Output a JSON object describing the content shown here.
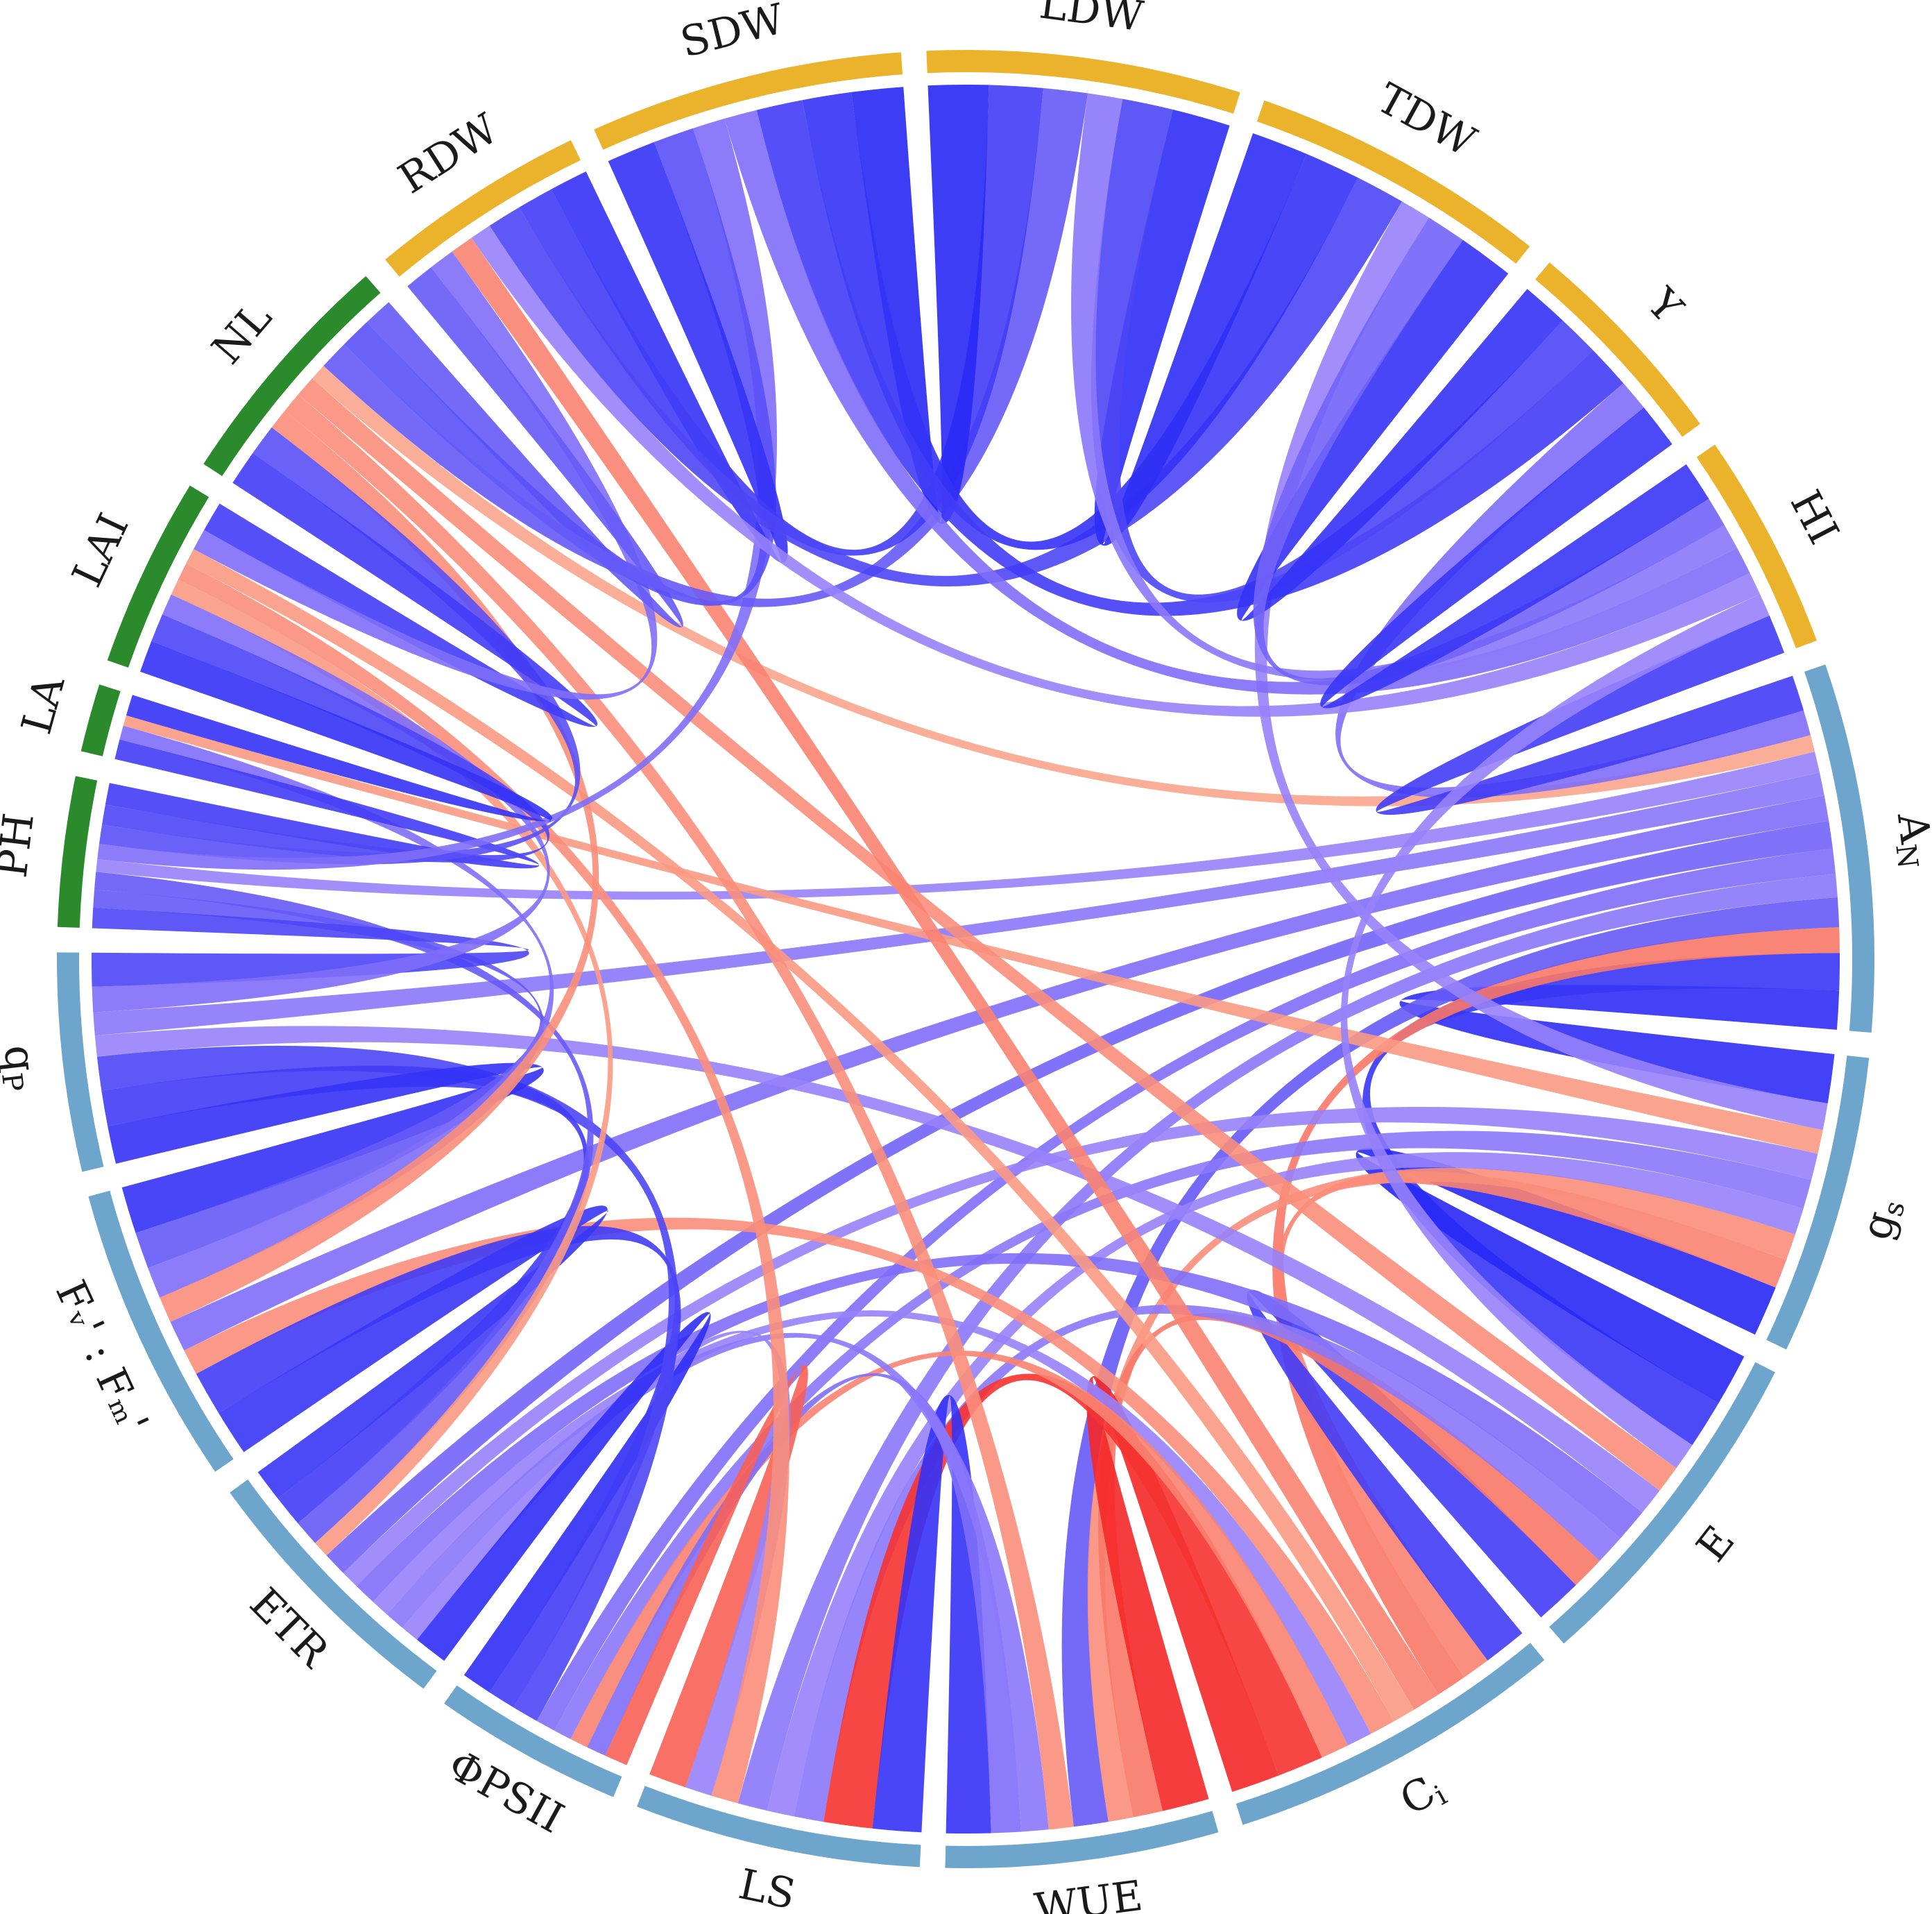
{
  "chart_data": {
    "type": "chord",
    "groups": [
      {
        "name": "AN",
        "label": "A",
        "sub": "N",
        "color": "#6ea5cc"
      },
      {
        "name": "gs",
        "label": "g",
        "sub": "s",
        "color": "#6ea5cc"
      },
      {
        "name": "E",
        "label": "E",
        "sub": "",
        "color": "#6ea5cc"
      },
      {
        "name": "Ci",
        "label": "C",
        "sub": "i",
        "color": "#6ea5cc"
      },
      {
        "name": "WUE",
        "label": "WUE",
        "sub": "",
        "color": "#6ea5cc"
      },
      {
        "name": "LS",
        "label": "LS",
        "sub": "",
        "color": "#6ea5cc"
      },
      {
        "name": "PhiPSII",
        "label": "ΦPSII",
        "sub": "",
        "color": "#6ea5cc"
      },
      {
        "name": "ETR",
        "label": "ETR",
        "sub": "",
        "color": "#6ea5cc"
      },
      {
        "name": "FvFm",
        "label": "Fᵥ' : Fₘ'",
        "sub": "",
        "color": "#6ea5cc"
      },
      {
        "name": "qP",
        "label": "q",
        "sub": "P",
        "color": "#6ea5cc"
      },
      {
        "name": "PH",
        "label": "PH",
        "sub": "",
        "color": "#2b8a2b"
      },
      {
        "name": "LA",
        "label": "LA",
        "sub": "",
        "color": "#2b8a2b"
      },
      {
        "name": "LAI",
        "label": "LAI",
        "sub": "",
        "color": "#2b8a2b"
      },
      {
        "name": "NL",
        "label": "NL",
        "sub": "",
        "color": "#2b8a2b"
      },
      {
        "name": "RDW",
        "label": "RDW",
        "sub": "",
        "color": "#ebb22b"
      },
      {
        "name": "SDW",
        "label": "SDW",
        "sub": "",
        "color": "#ebb22b"
      },
      {
        "name": "LDW",
        "label": "LDW",
        "sub": "",
        "color": "#ebb22b"
      },
      {
        "name": "TDW",
        "label": "TDW",
        "sub": "",
        "color": "#ebb22b"
      },
      {
        "name": "Y",
        "label": "Y",
        "sub": "",
        "color": "#ebb22b"
      },
      {
        "name": "HI",
        "label": "HI",
        "sub": "",
        "color": "#ebb22b"
      }
    ],
    "group_sizes": [
      1.35,
      1.1,
      1.25,
      1.25,
      1.0,
      1.05,
      0.7,
      1.0,
      1.1,
      0.8,
      0.55,
      0.25,
      0.7,
      0.9,
      0.8,
      1.15,
      1.15,
      1.1,
      0.8,
      0.8
    ],
    "links": [
      {
        "a": "AN",
        "b": "gs",
        "r": 0.92
      },
      {
        "a": "AN",
        "b": "E",
        "r": 0.88
      },
      {
        "a": "AN",
        "b": "Ci",
        "r": -0.6
      },
      {
        "a": "AN",
        "b": "WUE",
        "r": 0.7
      },
      {
        "a": "AN",
        "b": "LS",
        "r": 0.55
      },
      {
        "a": "AN",
        "b": "PhiPSII",
        "r": 0.6
      },
      {
        "a": "AN",
        "b": "ETR",
        "r": 0.65
      },
      {
        "a": "AN",
        "b": "FvFm",
        "r": 0.6
      },
      {
        "a": "AN",
        "b": "qP",
        "r": 0.55
      },
      {
        "a": "AN",
        "b": "PH",
        "r": 0.5
      },
      {
        "a": "AN",
        "b": "NL",
        "r": -0.4
      },
      {
        "a": "AN",
        "b": "Y",
        "r": 0.6
      },
      {
        "a": "AN",
        "b": "HI",
        "r": 0.85
      },
      {
        "a": "gs",
        "b": "E",
        "r": 0.95
      },
      {
        "a": "gs",
        "b": "Ci",
        "r": -0.55
      },
      {
        "a": "gs",
        "b": "WUE",
        "r": -0.5
      },
      {
        "a": "gs",
        "b": "LS",
        "r": 0.5
      },
      {
        "a": "gs",
        "b": "PhiPSII",
        "r": 0.55
      },
      {
        "a": "gs",
        "b": "ETR",
        "r": 0.5
      },
      {
        "a": "gs",
        "b": "LA",
        "r": -0.45
      },
      {
        "a": "gs",
        "b": "TDW",
        "r": 0.5
      },
      {
        "a": "E",
        "b": "Ci",
        "r": 0.85
      },
      {
        "a": "E",
        "b": "WUE",
        "r": -0.6
      },
      {
        "a": "E",
        "b": "LS",
        "r": 0.55
      },
      {
        "a": "E",
        "b": "ETR",
        "r": 0.6
      },
      {
        "a": "E",
        "b": "qP",
        "r": 0.5
      },
      {
        "a": "E",
        "b": "NL",
        "r": -0.5
      },
      {
        "a": "E",
        "b": "HI",
        "r": 0.5
      },
      {
        "a": "Ci",
        "b": "WUE",
        "r": -0.95
      },
      {
        "a": "Ci",
        "b": "LS",
        "r": -0.9
      },
      {
        "a": "Ci",
        "b": "ETR",
        "r": 0.5
      },
      {
        "a": "Ci",
        "b": "PhiPSII",
        "r": -0.55
      },
      {
        "a": "Ci",
        "b": "FvFm",
        "r": -0.5
      },
      {
        "a": "Ci",
        "b": "RDW",
        "r": -0.55
      },
      {
        "a": "Ci",
        "b": "LAI",
        "r": -0.45
      },
      {
        "a": "WUE",
        "b": "LS",
        "r": 0.9
      },
      {
        "a": "WUE",
        "b": "PhiPSII",
        "r": 0.6
      },
      {
        "a": "WUE",
        "b": "ETR",
        "r": 0.55
      },
      {
        "a": "WUE",
        "b": "NL",
        "r": -0.5
      },
      {
        "a": "LS",
        "b": "PhiPSII",
        "r": -0.7
      },
      {
        "a": "LS",
        "b": "ETR",
        "r": 0.5
      },
      {
        "a": "LS",
        "b": "LAI",
        "r": -0.5
      },
      {
        "a": "PhiPSII",
        "b": "ETR",
        "r": 0.92
      },
      {
        "a": "PhiPSII",
        "b": "FvFm",
        "r": 0.85
      },
      {
        "a": "PhiPSII",
        "b": "qP",
        "r": 0.8
      },
      {
        "a": "ETR",
        "b": "FvFm",
        "r": 0.88
      },
      {
        "a": "ETR",
        "b": "qP",
        "r": 0.85
      },
      {
        "a": "ETR",
        "b": "PH",
        "r": 0.7
      },
      {
        "a": "ETR",
        "b": "LAI",
        "r": -0.45
      },
      {
        "a": "FvFm",
        "b": "qP",
        "r": 0.9
      },
      {
        "a": "FvFm",
        "b": "PH",
        "r": 0.7
      },
      {
        "a": "FvFm",
        "b": "LA",
        "r": 0.6
      },
      {
        "a": "FvFm",
        "b": "NL",
        "r": -0.5
      },
      {
        "a": "qP",
        "b": "PH",
        "r": 0.8
      },
      {
        "a": "qP",
        "b": "LAI",
        "r": 0.6
      },
      {
        "a": "PH",
        "b": "LA",
        "r": 0.85
      },
      {
        "a": "PH",
        "b": "LAI",
        "r": 0.8
      },
      {
        "a": "PH",
        "b": "NL",
        "r": 0.75
      },
      {
        "a": "PH",
        "b": "SDW",
        "r": 0.6
      },
      {
        "a": "LA",
        "b": "LAI",
        "r": 0.9
      },
      {
        "a": "LAI",
        "b": "NL",
        "r": 0.85
      },
      {
        "a": "LAI",
        "b": "RDW",
        "r": 0.6
      },
      {
        "a": "NL",
        "b": "RDW",
        "r": 0.7
      },
      {
        "a": "NL",
        "b": "SDW",
        "r": 0.75
      },
      {
        "a": "NL",
        "b": "LDW",
        "r": 0.7
      },
      {
        "a": "RDW",
        "b": "SDW",
        "r": 0.9
      },
      {
        "a": "RDW",
        "b": "LDW",
        "r": 0.85
      },
      {
        "a": "RDW",
        "b": "TDW",
        "r": 0.8
      },
      {
        "a": "RDW",
        "b": "HI",
        "r": 0.5
      },
      {
        "a": "SDW",
        "b": "LDW",
        "r": 0.95
      },
      {
        "a": "SDW",
        "b": "TDW",
        "r": 0.9
      },
      {
        "a": "SDW",
        "b": "Y",
        "r": 0.85
      },
      {
        "a": "SDW",
        "b": "HI",
        "r": 0.6
      },
      {
        "a": "LDW",
        "b": "TDW",
        "r": 0.92
      },
      {
        "a": "LDW",
        "b": "Y",
        "r": 0.8
      },
      {
        "a": "LDW",
        "b": "HI",
        "r": 0.55
      },
      {
        "a": "TDW",
        "b": "Y",
        "r": 0.9
      },
      {
        "a": "TDW",
        "b": "HI",
        "r": 0.65
      },
      {
        "a": "Y",
        "b": "HI",
        "r": 0.88
      }
    ],
    "colors": {
      "positive": "#2a2af5",
      "negative": "#f52a2a"
    }
  }
}
